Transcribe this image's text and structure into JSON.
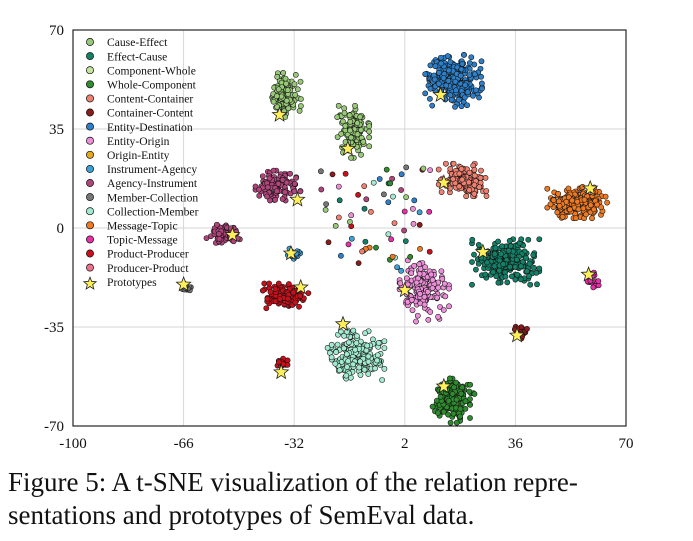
{
  "chart_data": {
    "type": "scatter",
    "title": "",
    "xlabel": "",
    "ylabel": "",
    "xlim": [
      -100,
      70
    ],
    "ylim": [
      -70,
      70
    ],
    "x_ticks": [
      -100,
      -66,
      -32,
      2,
      36,
      70
    ],
    "y_ticks": [
      -70,
      -35,
      0,
      35,
      70
    ],
    "grid": true,
    "legend_position": "top-left",
    "prototype_marker": "star",
    "series": [
      {
        "name": "Cause-Effect",
        "color": "#98c978",
        "clusters": [
          {
            "cx": -35,
            "cy": 47,
            "sx": 2.2,
            "sy": 3.8,
            "n": 130
          },
          {
            "cx": -14,
            "cy": 34,
            "sx": 2.2,
            "sy": 4.0,
            "n": 130
          }
        ],
        "prototypes": [
          [
            -36.5,
            40
          ],
          [
            -15.5,
            28
          ]
        ]
      },
      {
        "name": "Effect-Cause",
        "color": "#138068",
        "clusters": [
          {
            "cx": 33,
            "cy": -12,
            "sx": 4.5,
            "sy": 3.5,
            "n": 260
          }
        ],
        "prototypes": [
          [
            26,
            -8.5
          ]
        ]
      },
      {
        "name": "Component-Whole",
        "color": "#c3e59a",
        "clusters": [],
        "prototypes": []
      },
      {
        "name": "Whole-Component",
        "color": "#2e8b2e",
        "clusters": [
          {
            "cx": 17,
            "cy": -61,
            "sx": 2.8,
            "sy": 3.4,
            "n": 160
          }
        ],
        "prototypes": [
          [
            14,
            -56
          ]
        ]
      },
      {
        "name": "Content-Container",
        "color": "#f08070",
        "clusters": [
          {
            "cx": 20,
            "cy": 17,
            "sx": 3.3,
            "sy": 2.5,
            "n": 160
          }
        ],
        "prototypes": [
          [
            14,
            16
          ]
        ]
      },
      {
        "name": "Container-Content",
        "color": "#8b1a1a",
        "clusters": [
          {
            "cx": 37.5,
            "cy": -37,
            "sx": 0.9,
            "sy": 0.9,
            "n": 22
          }
        ],
        "prototypes": [
          [
            36.5,
            -38
          ]
        ]
      },
      {
        "name": "Entity-Destination",
        "color": "#2c7fc8",
        "clusters": [
          {
            "cx": 17,
            "cy": 52,
            "sx": 3.8,
            "sy": 4.0,
            "n": 320
          }
        ],
        "prototypes": [
          [
            13,
            47
          ]
        ]
      },
      {
        "name": "Entity-Origin",
        "color": "#ec8fd8",
        "clusters": [
          {
            "cx": 8,
            "cy": -22,
            "sx": 3.3,
            "sy": 4.8,
            "n": 160
          }
        ],
        "prototypes": [
          [
            2,
            -22
          ]
        ]
      },
      {
        "name": "Origin-Entity",
        "color": "#e6a820",
        "clusters": [],
        "prototypes": []
      },
      {
        "name": "Instrument-Agency",
        "color": "#3ba0d8",
        "clusters": [
          {
            "cx": -32,
            "cy": -9,
            "sx": 1.0,
            "sy": 0.8,
            "n": 20
          }
        ],
        "prototypes": [
          [
            -33,
            -9
          ]
        ]
      },
      {
        "name": "Agency-Instrument",
        "color": "#b0457c",
        "clusters": [
          {
            "cx": -37,
            "cy": 15,
            "sx": 3.0,
            "sy": 2.3,
            "n": 110
          },
          {
            "cx": -54,
            "cy": -2,
            "sx": 2.3,
            "sy": 1.6,
            "n": 60
          }
        ],
        "prototypes": [
          [
            -31,
            10
          ],
          [
            -51,
            -2.5
          ]
        ]
      },
      {
        "name": "Member-Collection",
        "color": "#777777",
        "clusters": [
          {
            "cx": -65,
            "cy": -21,
            "sx": 0.6,
            "sy": 0.7,
            "n": 12
          }
        ],
        "prototypes": [
          [
            -66,
            -20
          ]
        ]
      },
      {
        "name": "Collection-Member",
        "color": "#a2ead0",
        "clusters": [
          {
            "cx": -13,
            "cy": -45,
            "sx": 3.8,
            "sy": 3.8,
            "n": 200
          }
        ],
        "prototypes": [
          [
            -17,
            -34
          ]
        ]
      },
      {
        "name": "Message-Topic",
        "color": "#ef7a22",
        "clusters": [
          {
            "cx": 55,
            "cy": 9,
            "sx": 4.0,
            "sy": 2.4,
            "n": 260
          }
        ],
        "prototypes": [
          [
            59,
            14
          ]
        ]
      },
      {
        "name": "Topic-Message",
        "color": "#e82fa8",
        "clusters": [
          {
            "cx": 59.5,
            "cy": -18,
            "sx": 0.9,
            "sy": 1.3,
            "n": 26
          }
        ],
        "prototypes": [
          [
            58.5,
            -16.5
          ]
        ]
      },
      {
        "name": "Product-Producer",
        "color": "#c8101c",
        "clusters": [
          {
            "cx": -35,
            "cy": -24,
            "sx": 3.2,
            "sy": 1.9,
            "n": 130
          },
          {
            "cx": -36,
            "cy": -48,
            "sx": 1.0,
            "sy": 0.8,
            "n": 18
          }
        ],
        "prototypes": [
          [
            -30,
            -21
          ],
          [
            -36,
            -51
          ]
        ]
      },
      {
        "name": "Producer-Product",
        "color": "#ec708c",
        "clusters": [],
        "prototypes": []
      },
      {
        "name": "Prototypes",
        "color": "#fff05a",
        "clusters": [],
        "prototypes": []
      }
    ]
  },
  "caption": {
    "line1": "Figure 5: A t-SNE visualization of the relation repre-",
    "line2": "sentations and prototypes of SemEval data."
  }
}
